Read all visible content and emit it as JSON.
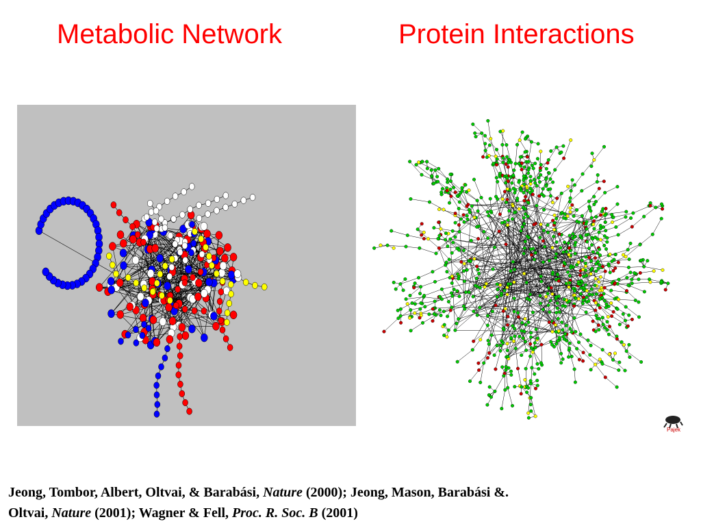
{
  "titles": {
    "left": "Metabolic Network",
    "right": "Protein Interactions"
  },
  "logo": "Pajek",
  "citation": {
    "parts": [
      "Jeong, Tombor, Albert, Oltvai, & Barabási, ",
      "Nature",
      "  (2000); Jeong, Mason, Barabási &.",
      "Oltvai, ",
      "Nature",
      " (2001); Wagner & Fell, ",
      "Proc. R. Soc.  B",
      " (2001)"
    ]
  }
}
